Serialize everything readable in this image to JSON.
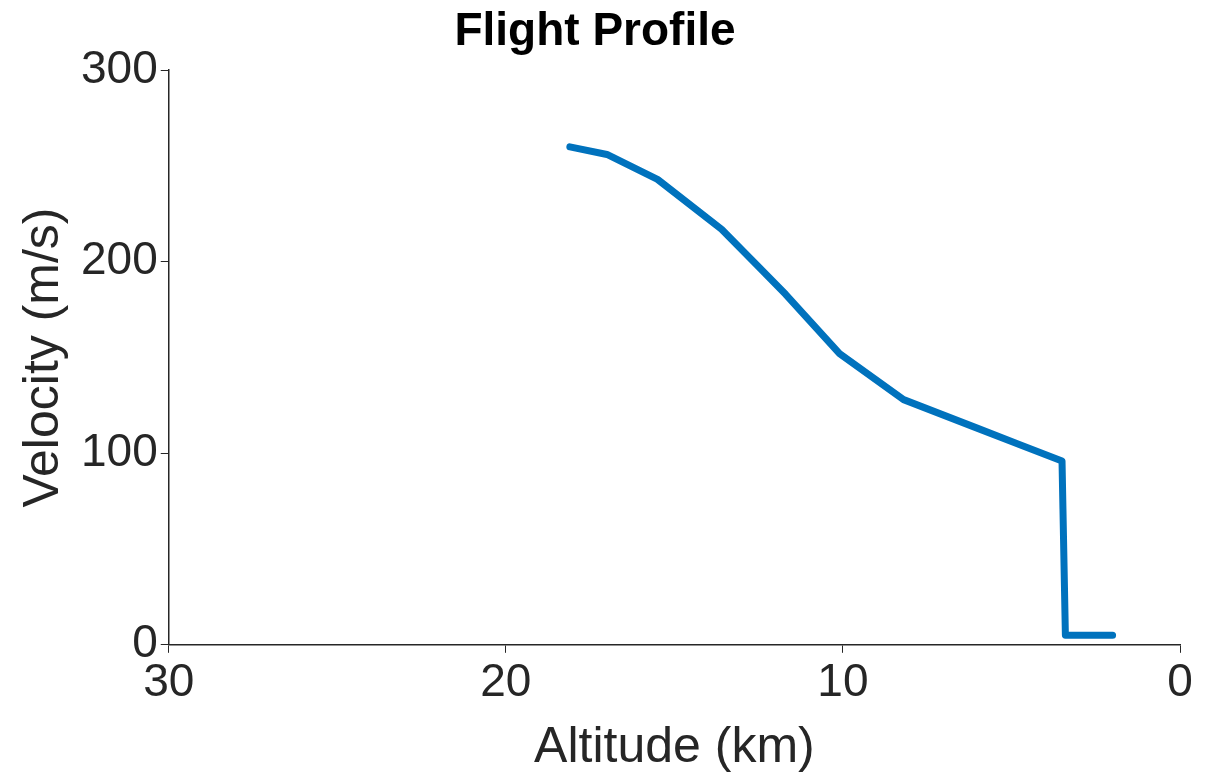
{
  "chart_data": {
    "type": "line",
    "title": "Flight Profile",
    "xlabel": "Altitude (km)",
    "ylabel": "Velocity (m/s)",
    "xlim": [
      30,
      0
    ],
    "xticks": [
      30,
      20,
      10,
      0
    ],
    "ylim": [
      0,
      300
    ],
    "yticks": [
      0,
      100,
      200,
      300
    ],
    "grid": false,
    "legend": false,
    "marker": "none",
    "line_style": "solid",
    "series": [
      {
        "color": "#0072bd",
        "x": [
          18.1,
          17,
          15.5,
          13.6,
          11.7,
          10.1,
          8.2,
          6.0,
          3.5,
          3.4,
          2.0
        ],
        "values": [
          260,
          256,
          243,
          217,
          183,
          152,
          128,
          113,
          96,
          5,
          5
        ]
      }
    ]
  }
}
